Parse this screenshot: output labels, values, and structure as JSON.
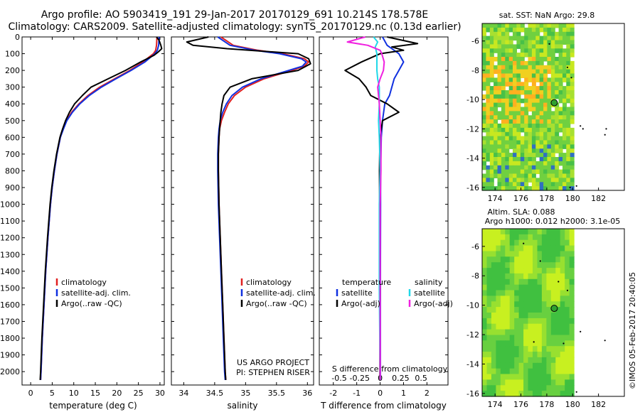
{
  "header": {
    "title_line1": "Argo profile: AO 5903419_191 29-Jan-2017 20170129_691 10.214S 178.578E",
    "title_line2": "Climatology: CARS2009. Satellite-adjusted climatology: synTS_20170129.nc (0.13d earlier)"
  },
  "colors": {
    "climatology": "#e02020",
    "satellite": "#1030e0",
    "argo": "#000000",
    "sal_satellite": "#20d8e8",
    "sal_argo": "#f020e0"
  },
  "chart_data": [
    {
      "id": "temperature",
      "type": "line",
      "xlabel": "temperature (deg C)",
      "ylabel": "",
      "xlim": [
        -2,
        31
      ],
      "ylim": [
        2080,
        0
      ],
      "xticks": [
        0,
        5,
        10,
        15,
        20,
        25,
        30
      ],
      "yticks": [
        0,
        100,
        200,
        300,
        400,
        500,
        600,
        700,
        800,
        900,
        1000,
        1100,
        1200,
        1300,
        1400,
        1500,
        1600,
        1700,
        1800,
        1900,
        2000
      ],
      "legend": [
        "climatology",
        "satellite-adj. clim.",
        "Argo(..raw -QC)"
      ],
      "series": [
        {
          "name": "climatology",
          "color": "#e02020",
          "depth": [
            0,
            50,
            80,
            100,
            150,
            200,
            250,
            300,
            350,
            400,
            450,
            500,
            550,
            600,
            700,
            800,
            900,
            1000,
            1200,
            1400,
            1600,
            1800,
            2000,
            2050
          ],
          "values": [
            29.3,
            29.2,
            29.0,
            28.5,
            26.0,
            23.0,
            19.5,
            16.0,
            13.3,
            11.2,
            9.5,
            8.3,
            7.5,
            6.9,
            6.1,
            5.5,
            5.0,
            4.6,
            4.0,
            3.5,
            3.1,
            2.7,
            2.4,
            2.3
          ]
        },
        {
          "name": "satellite-adj. clim.",
          "color": "#1030e0",
          "depth": [
            0,
            50,
            80,
            100,
            150,
            200,
            250,
            300,
            350,
            400,
            450,
            500,
            550,
            600,
            700,
            800,
            900,
            1000,
            1200,
            1400,
            1600,
            1800,
            2000,
            2050
          ],
          "values": [
            29.8,
            29.7,
            29.4,
            28.8,
            26.5,
            23.3,
            19.8,
            16.4,
            13.6,
            11.4,
            9.7,
            8.4,
            7.6,
            6.9,
            6.1,
            5.5,
            5.0,
            4.6,
            4.0,
            3.5,
            3.1,
            2.7,
            2.4,
            2.3
          ]
        },
        {
          "name": "Argo(..raw -QC)",
          "color": "#000000",
          "depth": [
            0,
            20,
            50,
            70,
            90,
            110,
            150,
            200,
            250,
            300,
            350,
            400,
            450,
            500,
            550,
            600,
            700,
            800,
            900,
            1000,
            1200,
            1400,
            1600,
            1800,
            2000,
            2050
          ],
          "values": [
            29.2,
            29.8,
            30.2,
            30.4,
            29.6,
            28.6,
            25.5,
            22.0,
            18.0,
            14.0,
            12.0,
            10.2,
            9.0,
            8.1,
            7.4,
            6.8,
            6.0,
            5.4,
            4.9,
            4.5,
            3.9,
            3.4,
            3.0,
            2.6,
            2.3,
            2.2
          ]
        }
      ]
    },
    {
      "id": "salinity",
      "type": "line",
      "xlabel": "salinity",
      "xlim": [
        33.8,
        36.1
      ],
      "ylim": [
        2080,
        0
      ],
      "xticks": [
        34,
        34.5,
        35,
        35.5,
        36
      ],
      "legend": [
        "climatology",
        "satellite-adj. clim.",
        "Argo(..raw -QC)"
      ],
      "annotation_line1": "US ARGO PROJECT",
      "annotation_line2": "PI: STEPHEN RISER",
      "series": [
        {
          "name": "climatology",
          "color": "#e02020",
          "depth": [
            0,
            50,
            80,
            100,
            130,
            150,
            175,
            200,
            250,
            300,
            350,
            400,
            450,
            500,
            550,
            600,
            700,
            800,
            1000,
            1200,
            1400,
            1600,
            1800,
            2000,
            2050
          ],
          "values": [
            34.6,
            34.8,
            35.2,
            35.6,
            35.95,
            36.02,
            35.95,
            35.75,
            35.3,
            35.0,
            34.82,
            34.72,
            34.66,
            34.61,
            34.58,
            34.57,
            34.56,
            34.56,
            34.57,
            34.59,
            34.61,
            34.63,
            34.65,
            34.67,
            34.68
          ]
        },
        {
          "name": "satellite-adj. clim.",
          "color": "#1030e0",
          "depth": [
            0,
            50,
            80,
            100,
            130,
            150,
            175,
            200,
            250,
            300,
            350,
            400,
            450,
            500,
            550,
            600,
            700,
            800,
            1000,
            1200,
            1400,
            1600,
            1800,
            2000,
            2050
          ],
          "values": [
            34.55,
            34.75,
            35.15,
            35.55,
            35.9,
            35.98,
            35.92,
            35.7,
            35.25,
            34.95,
            34.78,
            34.69,
            34.63,
            34.59,
            34.57,
            34.56,
            34.55,
            34.55,
            34.56,
            34.58,
            34.6,
            34.62,
            34.64,
            34.66,
            34.67
          ]
        },
        {
          "name": "Argo(..raw -QC)",
          "color": "#000000",
          "depth": [
            0,
            30,
            50,
            70,
            100,
            130,
            160,
            200,
            250,
            300,
            350,
            400,
            450,
            500,
            550,
            600,
            700,
            800,
            1000,
            1200,
            1400,
            1600,
            1800,
            2000,
            2050
          ],
          "values": [
            34.4,
            34.05,
            34.15,
            34.7,
            35.85,
            36.02,
            36.05,
            35.85,
            35.1,
            34.75,
            34.65,
            34.62,
            34.6,
            34.59,
            34.58,
            34.57,
            34.56,
            34.56,
            34.57,
            34.59,
            34.61,
            34.63,
            34.65,
            34.67,
            34.68
          ]
        }
      ]
    },
    {
      "id": "difference",
      "type": "line",
      "xlabel": "T difference from climatology",
      "xlabel_top": "S difference from climatology",
      "xlim": [
        -2.6,
        2.9
      ],
      "ylim": [
        2080,
        0
      ],
      "xticks": [
        -2,
        -1,
        0,
        1,
        2
      ],
      "xticks_top": [
        -0.5,
        -0.25,
        0,
        0.25,
        0.5
      ],
      "xticks_top_labels": [
        "-0.5",
        "-0.25",
        "0",
        "0.25",
        "0.5"
      ],
      "legend_temperature_title": "temperature",
      "legend_salinity_title": "salinity",
      "legend": [
        "satellite",
        "Argo(-adj)",
        "satellite",
        "Argo(-adj)"
      ],
      "series": [
        {
          "name": "T satellite",
          "color": "#1030e0",
          "depth": [
            0,
            50,
            80,
            100,
            150,
            200,
            250,
            300,
            350,
            400,
            500,
            600,
            800,
            1000,
            1500,
            2050
          ],
          "values": [
            0.1,
            0.3,
            0.6,
            0.8,
            1.0,
            0.8,
            0.6,
            0.5,
            0.4,
            0.2,
            0.1,
            0.05,
            0.02,
            0.02,
            0.01,
            0.01
          ]
        },
        {
          "name": "T Argo(-adj)",
          "color": "#000000",
          "depth": [
            0,
            40,
            60,
            80,
            100,
            150,
            200,
            250,
            300,
            350,
            400,
            450,
            500,
            550,
            600,
            700,
            800,
            1000,
            1500,
            2050
          ],
          "values": [
            0.3,
            1.6,
            0.5,
            1.0,
            0.0,
            -0.8,
            -1.5,
            -0.9,
            -0.6,
            -0.4,
            0.3,
            0.8,
            0.1,
            0.05,
            0.0,
            -0.02,
            -0.03,
            -0.02,
            0.0,
            -0.01
          ]
        },
        {
          "name": "S satellite",
          "color": "#20d8e8",
          "depth": [
            0,
            30,
            60,
            100,
            150,
            200,
            250,
            300,
            400,
            500,
            600,
            800,
            1000,
            1500,
            2050
          ],
          "values": [
            -0.08,
            -0.03,
            -0.06,
            -0.04,
            -0.04,
            -0.04,
            -0.03,
            -0.01,
            -0.01,
            -0.02,
            -0.01,
            0.0,
            -0.01,
            -0.01,
            0.0
          ]
        },
        {
          "name": "S Argo(-adj)",
          "color": "#f020e0",
          "depth": [
            0,
            30,
            50,
            80,
            100,
            150,
            200,
            250,
            300,
            350,
            400,
            500,
            600,
            800,
            1000,
            1500,
            2050
          ],
          "values": [
            -0.18,
            -0.4,
            -0.15,
            0.0,
            0.02,
            0.05,
            0.04,
            0.0,
            -0.03,
            -0.02,
            -0.01,
            0.0,
            0.01,
            0.01,
            0.0,
            0.0,
            0.0
          ]
        }
      ]
    },
    {
      "id": "sst_map",
      "type": "heatmap",
      "title": "sat. SST: NaN Argo: 29.8",
      "xlim": [
        173,
        184
      ],
      "ylim": [
        -16.2,
        -4.8
      ],
      "xticks": [
        174,
        176,
        178,
        180,
        182
      ],
      "yticks": [
        -6,
        -8,
        -10,
        -12,
        -14,
        -16
      ],
      "land_from_lon": 180.1,
      "marker": {
        "lon": 178.578,
        "lat": -10.214
      },
      "islands": [
        [
          178.2,
          -6.2
        ],
        [
          179.6,
          -7.8
        ],
        [
          179.9,
          -8.5
        ],
        [
          180.6,
          -11.8
        ],
        [
          180.8,
          -12.0
        ],
        [
          182.5,
          -12.4
        ],
        [
          182.6,
          -12.0
        ],
        [
          180.3,
          -15.9
        ],
        [
          179.8,
          -16.0
        ]
      ]
    },
    {
      "id": "sla_map",
      "type": "heatmap",
      "title": "Altim. SLA: 0.088",
      "subtitle": "Argo h1000: 0.012 h2000: 3.1e-05",
      "xlim": [
        173,
        184
      ],
      "ylim": [
        -16.2,
        -4.8
      ],
      "xticks": [
        174,
        176,
        178,
        180,
        182
      ],
      "yticks": [
        -6,
        -8,
        -10,
        -12,
        -14,
        -16
      ],
      "land_from_lon": 180.1,
      "marker": {
        "lon": 178.578,
        "lat": -10.214
      },
      "islands": [
        [
          176.2,
          -5.8
        ],
        [
          177.5,
          -7.0
        ],
        [
          178.9,
          -8.4
        ],
        [
          179.6,
          -9.0
        ],
        [
          180.6,
          -11.8
        ],
        [
          182.5,
          -12.4
        ],
        [
          177.0,
          -12.5
        ],
        [
          179.3,
          -12.6
        ],
        [
          180.3,
          -15.9
        ]
      ]
    }
  ],
  "footer": {
    "credit": "©IMOS 05-Feb-2017 20:40:05"
  }
}
